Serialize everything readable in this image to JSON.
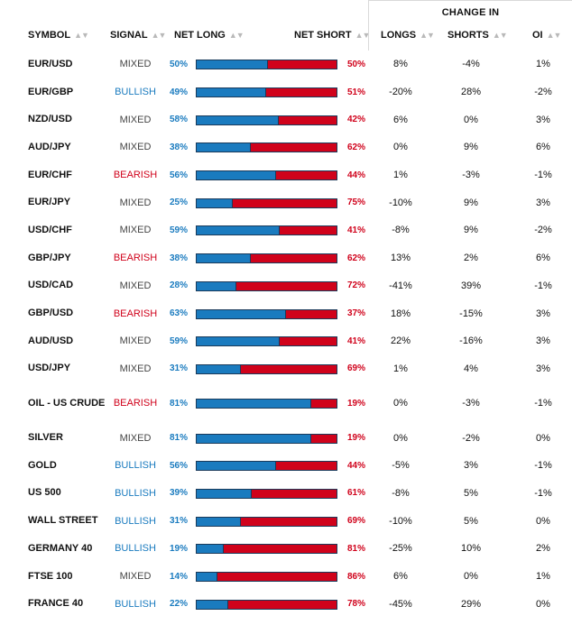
{
  "group_header": "CHANGE IN",
  "columns": {
    "symbol": "SYMBOL",
    "signal": "SIGNAL",
    "net_long": "NET LONG",
    "net_short": "NET SHORT",
    "longs": "LONGS",
    "shorts": "SHORTS",
    "oi": "OI",
    "sort_glyph": "▲▼"
  },
  "colors": {
    "long_blue": "#1a7bbf",
    "short_red": "#d0021b",
    "bullish": "#1a7bbf",
    "bearish": "#d0021b",
    "mixed": "#444444"
  },
  "rows": [
    {
      "symbol": "EUR/USD",
      "signal": "MIXED",
      "signal_type": "mixed",
      "net_long": "50%",
      "net_short": "50%",
      "long_pct": 50,
      "longs": "8%",
      "shorts": "-4%",
      "oi": "1%"
    },
    {
      "symbol": "EUR/GBP",
      "signal": "BULLISH",
      "signal_type": "bullish",
      "net_long": "49%",
      "net_short": "51%",
      "long_pct": 49,
      "longs": "-20%",
      "shorts": "28%",
      "oi": "-2%"
    },
    {
      "symbol": "NZD/USD",
      "signal": "MIXED",
      "signal_type": "mixed",
      "net_long": "58%",
      "net_short": "42%",
      "long_pct": 58,
      "longs": "6%",
      "shorts": "0%",
      "oi": "3%"
    },
    {
      "symbol": "AUD/JPY",
      "signal": "MIXED",
      "signal_type": "mixed",
      "net_long": "38%",
      "net_short": "62%",
      "long_pct": 38,
      "longs": "0%",
      "shorts": "9%",
      "oi": "6%"
    },
    {
      "symbol": "EUR/CHF",
      "signal": "BEARISH",
      "signal_type": "bearish",
      "net_long": "56%",
      "net_short": "44%",
      "long_pct": 56,
      "longs": "1%",
      "shorts": "-3%",
      "oi": "-1%"
    },
    {
      "symbol": "EUR/JPY",
      "signal": "MIXED",
      "signal_type": "mixed",
      "net_long": "25%",
      "net_short": "75%",
      "long_pct": 25,
      "longs": "-10%",
      "shorts": "9%",
      "oi": "3%"
    },
    {
      "symbol": "USD/CHF",
      "signal": "MIXED",
      "signal_type": "mixed",
      "net_long": "59%",
      "net_short": "41%",
      "long_pct": 59,
      "longs": "-8%",
      "shorts": "9%",
      "oi": "-2%"
    },
    {
      "symbol": "GBP/JPY",
      "signal": "BEARISH",
      "signal_type": "bearish",
      "net_long": "38%",
      "net_short": "62%",
      "long_pct": 38,
      "longs": "13%",
      "shorts": "2%",
      "oi": "6%"
    },
    {
      "symbol": "USD/CAD",
      "signal": "MIXED",
      "signal_type": "mixed",
      "net_long": "28%",
      "net_short": "72%",
      "long_pct": 28,
      "longs": "-41%",
      "shorts": "39%",
      "oi": "-1%"
    },
    {
      "symbol": "GBP/USD",
      "signal": "BEARISH",
      "signal_type": "bearish",
      "net_long": "63%",
      "net_short": "37%",
      "long_pct": 63,
      "longs": "18%",
      "shorts": "-15%",
      "oi": "3%"
    },
    {
      "symbol": "AUD/USD",
      "signal": "MIXED",
      "signal_type": "mixed",
      "net_long": "59%",
      "net_short": "41%",
      "long_pct": 59,
      "longs": "22%",
      "shorts": "-16%",
      "oi": "3%"
    },
    {
      "symbol": "USD/JPY",
      "signal": "MIXED",
      "signal_type": "mixed",
      "net_long": "31%",
      "net_short": "69%",
      "long_pct": 31,
      "longs": "1%",
      "shorts": "4%",
      "oi": "3%"
    },
    {
      "symbol": "OIL - US CRUDE",
      "signal": "BEARISH",
      "signal_type": "bearish",
      "net_long": "81%",
      "net_short": "19%",
      "long_pct": 81,
      "longs": "0%",
      "shorts": "-3%",
      "oi": "-1%",
      "tall": true
    },
    {
      "symbol": "SILVER",
      "signal": "MIXED",
      "signal_type": "mixed",
      "net_long": "81%",
      "net_short": "19%",
      "long_pct": 81,
      "longs": "0%",
      "shorts": "-2%",
      "oi": "0%"
    },
    {
      "symbol": "GOLD",
      "signal": "BULLISH",
      "signal_type": "bullish",
      "net_long": "56%",
      "net_short": "44%",
      "long_pct": 56,
      "longs": "-5%",
      "shorts": "3%",
      "oi": "-1%"
    },
    {
      "symbol": "US 500",
      "signal": "BULLISH",
      "signal_type": "bullish",
      "net_long": "39%",
      "net_short": "61%",
      "long_pct": 39,
      "longs": "-8%",
      "shorts": "5%",
      "oi": "-1%"
    },
    {
      "symbol": "WALL STREET",
      "signal": "BULLISH",
      "signal_type": "bullish",
      "net_long": "31%",
      "net_short": "69%",
      "long_pct": 31,
      "longs": "-10%",
      "shorts": "5%",
      "oi": "0%"
    },
    {
      "symbol": "GERMANY 40",
      "signal": "BULLISH",
      "signal_type": "bullish",
      "net_long": "19%",
      "net_short": "81%",
      "long_pct": 19,
      "longs": "-25%",
      "shorts": "10%",
      "oi": "2%"
    },
    {
      "symbol": "FTSE 100",
      "signal": "MIXED",
      "signal_type": "mixed",
      "net_long": "14%",
      "net_short": "86%",
      "long_pct": 14,
      "longs": "6%",
      "shorts": "0%",
      "oi": "1%"
    },
    {
      "symbol": "FRANCE 40",
      "signal": "BULLISH",
      "signal_type": "bullish",
      "net_long": "22%",
      "net_short": "78%",
      "long_pct": 22,
      "longs": "-45%",
      "shorts": "29%",
      "oi": "0%"
    }
  ]
}
